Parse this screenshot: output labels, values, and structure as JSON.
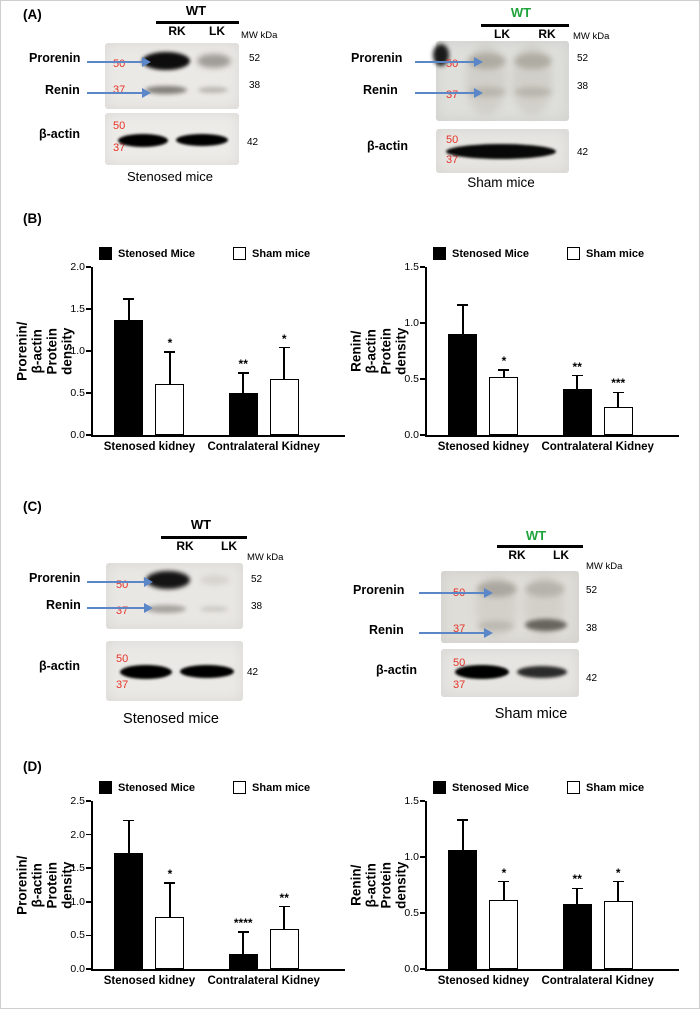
{
  "figure": {
    "panel_labels": {
      "a": "(A)",
      "b": "(B)",
      "c": "(C)",
      "d": "(D)"
    }
  },
  "blots": {
    "a_left": {
      "genotype": "WT",
      "genotype_color": "#000000",
      "lane1": "RK",
      "lane2": "LK",
      "mw_header": "MW kDa",
      "prorenin": "Prorenin",
      "renin": "Renin",
      "marker_50": "50",
      "marker_37": "37",
      "mw_52": "52",
      "mw_38": "38",
      "actin": "β-actin",
      "actin_marker_50": "50",
      "actin_marker_37": "37",
      "mw_42": "42",
      "caption": "Stenosed mice"
    },
    "a_right": {
      "genotype": "WT",
      "genotype_color": "#1fa33c",
      "lane1": "LK",
      "lane2": "RK",
      "mw_header": "MW kDa",
      "prorenin": "Prorenin",
      "renin": "Renin",
      "marker_50": "50",
      "marker_37": "37",
      "mw_52": "52",
      "mw_38": "38",
      "actin": "β-actin",
      "actin_marker_50": "50",
      "actin_marker_37": "37",
      "mw_42": "42",
      "caption": "Sham mice"
    },
    "c_left": {
      "genotype": "WT",
      "genotype_color": "#000000",
      "lane1": "RK",
      "lane2": "LK",
      "mw_header": "MW kDa",
      "prorenin": "Prorenin",
      "renin": "Renin",
      "marker_50": "50",
      "marker_37": "37",
      "mw_52": "52",
      "mw_38": "38",
      "actin": "β-actin",
      "actin_marker_50": "50",
      "actin_marker_37": "37",
      "mw_42": "42",
      "caption": "Stenosed mice"
    },
    "c_right": {
      "genotype": "WT",
      "genotype_color": "#1fa33c",
      "lane1": "RK",
      "lane2": "LK",
      "mw_header": "MW kDa",
      "prorenin": "Prorenin",
      "renin": "Renin",
      "marker_50": "50",
      "marker_37": "37",
      "mw_52": "52",
      "mw_38": "38",
      "actin": "β-actin",
      "actin_marker_50": "50",
      "actin_marker_37": "37",
      "mw_42": "42",
      "caption": "Sham mice"
    }
  },
  "chart_data": [
    {
      "panel": "B-left",
      "type": "bar",
      "ylabel": "Prorenin/β-actin\nProtein density",
      "xlabel": "",
      "categories": [
        "Stenosed kidney",
        "Contralateral Kidney"
      ],
      "series": [
        {
          "name": "Stenosed Mice",
          "fill": "#000000",
          "values": [
            1.37,
            0.5
          ],
          "errors": [
            0.25,
            0.24
          ],
          "sig": [
            "",
            "**"
          ]
        },
        {
          "name": "Sham mice",
          "fill": "#ffffff",
          "values": [
            0.61,
            0.67
          ],
          "errors": [
            0.38,
            0.37
          ],
          "sig": [
            "*",
            "*"
          ]
        }
      ],
      "ylim": [
        0,
        2.0
      ],
      "yticks": [
        0.0,
        0.5,
        1.0,
        1.5,
        2.0
      ],
      "grid": false,
      "legend_position": "top"
    },
    {
      "panel": "B-right",
      "type": "bar",
      "ylabel": "Renin/β-actin\nProtein density",
      "xlabel": "",
      "categories": [
        "Stenosed kidney",
        "Contralateral Kidney"
      ],
      "series": [
        {
          "name": "Stenosed Mice",
          "fill": "#000000",
          "values": [
            0.9,
            0.41
          ],
          "errors": [
            0.26,
            0.12
          ],
          "sig": [
            "",
            "**"
          ]
        },
        {
          "name": "Sham mice",
          "fill": "#ffffff",
          "values": [
            0.52,
            0.25
          ],
          "errors": [
            0.06,
            0.13
          ],
          "sig": [
            "*",
            "***"
          ]
        }
      ],
      "ylim": [
        0,
        1.5
      ],
      "yticks": [
        0.0,
        0.5,
        1.0,
        1.5
      ],
      "grid": false,
      "legend_position": "top"
    },
    {
      "panel": "D-left",
      "type": "bar",
      "ylabel": "Prorenin/β-actin\nProtein density",
      "xlabel": "",
      "categories": [
        "Stenosed kidney",
        "Contralateral Kidney"
      ],
      "series": [
        {
          "name": "Stenosed Mice",
          "fill": "#000000",
          "values": [
            1.73,
            0.22
          ],
          "errors": [
            0.48,
            0.33
          ],
          "sig": [
            "",
            "****"
          ]
        },
        {
          "name": "Sham mice",
          "fill": "#ffffff",
          "values": [
            0.78,
            0.6
          ],
          "errors": [
            0.5,
            0.33
          ],
          "sig": [
            "*",
            "**"
          ]
        }
      ],
      "ylim": [
        0,
        2.5
      ],
      "yticks": [
        0.0,
        0.5,
        1.0,
        1.5,
        2.0,
        2.5
      ],
      "grid": false,
      "legend_position": "top"
    },
    {
      "panel": "D-right",
      "type": "bar",
      "ylabel": "Renin/β-actin\nProtein density",
      "xlabel": "",
      "categories": [
        "Stenosed kidney",
        "Contralateral Kidney"
      ],
      "series": [
        {
          "name": "Stenosed Mice",
          "fill": "#000000",
          "values": [
            1.06,
            0.58
          ],
          "errors": [
            0.27,
            0.14
          ],
          "sig": [
            "",
            "**"
          ]
        },
        {
          "name": "Sham mice",
          "fill": "#ffffff",
          "values": [
            0.62,
            0.61
          ],
          "errors": [
            0.16,
            0.17
          ],
          "sig": [
            "*",
            "*"
          ]
        }
      ],
      "ylim": [
        0,
        1.5
      ],
      "yticks": [
        0.0,
        0.5,
        1.0,
        1.5
      ],
      "grid": false,
      "legend_position": "top"
    }
  ]
}
